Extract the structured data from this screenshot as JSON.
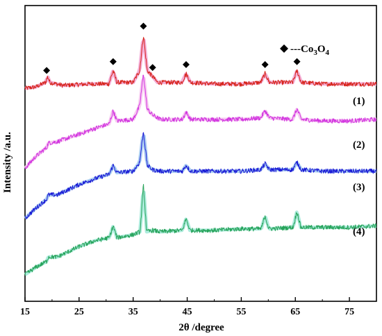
{
  "chart_data": {
    "type": "line",
    "xlabel": "2θ /degree",
    "ylabel": "Intensity /a.u.",
    "xlim": [
      15,
      80
    ],
    "x_ticks": [
      15,
      25,
      35,
      45,
      55,
      65,
      75
    ],
    "y_ticks_shown": false,
    "grid": false,
    "legend": {
      "marker": "diamond",
      "text_prefix": "---Co",
      "sub1": "3",
      "mid": "O",
      "sub2": "4"
    },
    "marker_positions_2theta": [
      19.0,
      31.3,
      36.9,
      38.6,
      44.8,
      59.4,
      65.3
    ],
    "series": [
      {
        "name": "(1)",
        "color": "#d62419",
        "halo": "#f2a0cf",
        "points": [
          [
            15,
            0.72
          ],
          [
            17,
            0.725
          ],
          [
            18.8,
            0.74
          ],
          [
            19.2,
            0.76
          ],
          [
            19.6,
            0.74
          ],
          [
            22,
            0.73
          ],
          [
            27,
            0.735
          ],
          [
            30.5,
            0.735
          ],
          [
            31.3,
            0.78
          ],
          [
            32,
            0.74
          ],
          [
            35,
            0.74
          ],
          [
            36.2,
            0.78
          ],
          [
            36.9,
            0.9
          ],
          [
            37.6,
            0.78
          ],
          [
            38.6,
            0.76
          ],
          [
            39.5,
            0.74
          ],
          [
            44,
            0.74
          ],
          [
            44.8,
            0.77
          ],
          [
            45.6,
            0.74
          ],
          [
            50,
            0.735
          ],
          [
            55,
            0.735
          ],
          [
            58.6,
            0.74
          ],
          [
            59.4,
            0.77
          ],
          [
            60.2,
            0.74
          ],
          [
            64.5,
            0.74
          ],
          [
            65.3,
            0.78
          ],
          [
            66.1,
            0.74
          ],
          [
            70,
            0.735
          ],
          [
            75,
            0.735
          ],
          [
            80,
            0.735
          ]
        ]
      },
      {
        "name": "(2)",
        "color": "#d235e0",
        "halo": "#f6c2ee",
        "points": [
          [
            15,
            0.45
          ],
          [
            17,
            0.49
          ],
          [
            19,
            0.52
          ],
          [
            19.3,
            0.535
          ],
          [
            21,
            0.54
          ],
          [
            25,
            0.565
          ],
          [
            28,
            0.585
          ],
          [
            30.6,
            0.6
          ],
          [
            31.3,
            0.645
          ],
          [
            32,
            0.61
          ],
          [
            35,
            0.615
          ],
          [
            36.2,
            0.66
          ],
          [
            36.9,
            0.77
          ],
          [
            37.6,
            0.65
          ],
          [
            38.6,
            0.63
          ],
          [
            40,
            0.615
          ],
          [
            44.1,
            0.615
          ],
          [
            44.8,
            0.64
          ],
          [
            45.6,
            0.615
          ],
          [
            50,
            0.615
          ],
          [
            55,
            0.615
          ],
          [
            58.6,
            0.62
          ],
          [
            59.4,
            0.645
          ],
          [
            60.2,
            0.62
          ],
          [
            64.5,
            0.615
          ],
          [
            65.3,
            0.65
          ],
          [
            66.1,
            0.615
          ],
          [
            70,
            0.61
          ],
          [
            75,
            0.61
          ],
          [
            80,
            0.615
          ]
        ]
      },
      {
        "name": "(3)",
        "color": "#1a1ad6",
        "halo": "#9cc6ee",
        "points": [
          [
            15,
            0.28
          ],
          [
            17,
            0.315
          ],
          [
            19,
            0.345
          ],
          [
            19.3,
            0.36
          ],
          [
            21,
            0.36
          ],
          [
            25,
            0.395
          ],
          [
            28,
            0.415
          ],
          [
            30.6,
            0.43
          ],
          [
            31.3,
            0.46
          ],
          [
            32,
            0.435
          ],
          [
            35,
            0.44
          ],
          [
            36.2,
            0.47
          ],
          [
            36.9,
            0.575
          ],
          [
            37.6,
            0.46
          ],
          [
            38.6,
            0.445
          ],
          [
            40,
            0.44
          ],
          [
            44.1,
            0.44
          ],
          [
            44.8,
            0.46
          ],
          [
            45.6,
            0.44
          ],
          [
            50,
            0.44
          ],
          [
            55,
            0.44
          ],
          [
            58.6,
            0.445
          ],
          [
            59.4,
            0.465
          ],
          [
            60.2,
            0.445
          ],
          [
            64.5,
            0.445
          ],
          [
            65.3,
            0.47
          ],
          [
            66.1,
            0.445
          ],
          [
            70,
            0.44
          ],
          [
            75,
            0.44
          ],
          [
            80,
            0.44
          ]
        ]
      },
      {
        "name": "(4)",
        "color": "#27a35a",
        "halo": "#9ee8d6",
        "points": [
          [
            15,
            0.09
          ],
          [
            17,
            0.115
          ],
          [
            19,
            0.135
          ],
          [
            19.3,
            0.15
          ],
          [
            21,
            0.15
          ],
          [
            25,
            0.185
          ],
          [
            28,
            0.205
          ],
          [
            30.6,
            0.215
          ],
          [
            31.3,
            0.255
          ],
          [
            32,
            0.215
          ],
          [
            35,
            0.225
          ],
          [
            36.3,
            0.235
          ],
          [
            36.9,
            0.395
          ],
          [
            37.5,
            0.235
          ],
          [
            38.6,
            0.24
          ],
          [
            40,
            0.235
          ],
          [
            44.1,
            0.24
          ],
          [
            44.8,
            0.28
          ],
          [
            45.5,
            0.24
          ],
          [
            50,
            0.24
          ],
          [
            55,
            0.245
          ],
          [
            58.7,
            0.245
          ],
          [
            59.4,
            0.29
          ],
          [
            60.1,
            0.245
          ],
          [
            64.6,
            0.25
          ],
          [
            65.3,
            0.305
          ],
          [
            66.0,
            0.25
          ],
          [
            70,
            0.25
          ],
          [
            75,
            0.25
          ],
          [
            80,
            0.255
          ]
        ]
      }
    ]
  }
}
